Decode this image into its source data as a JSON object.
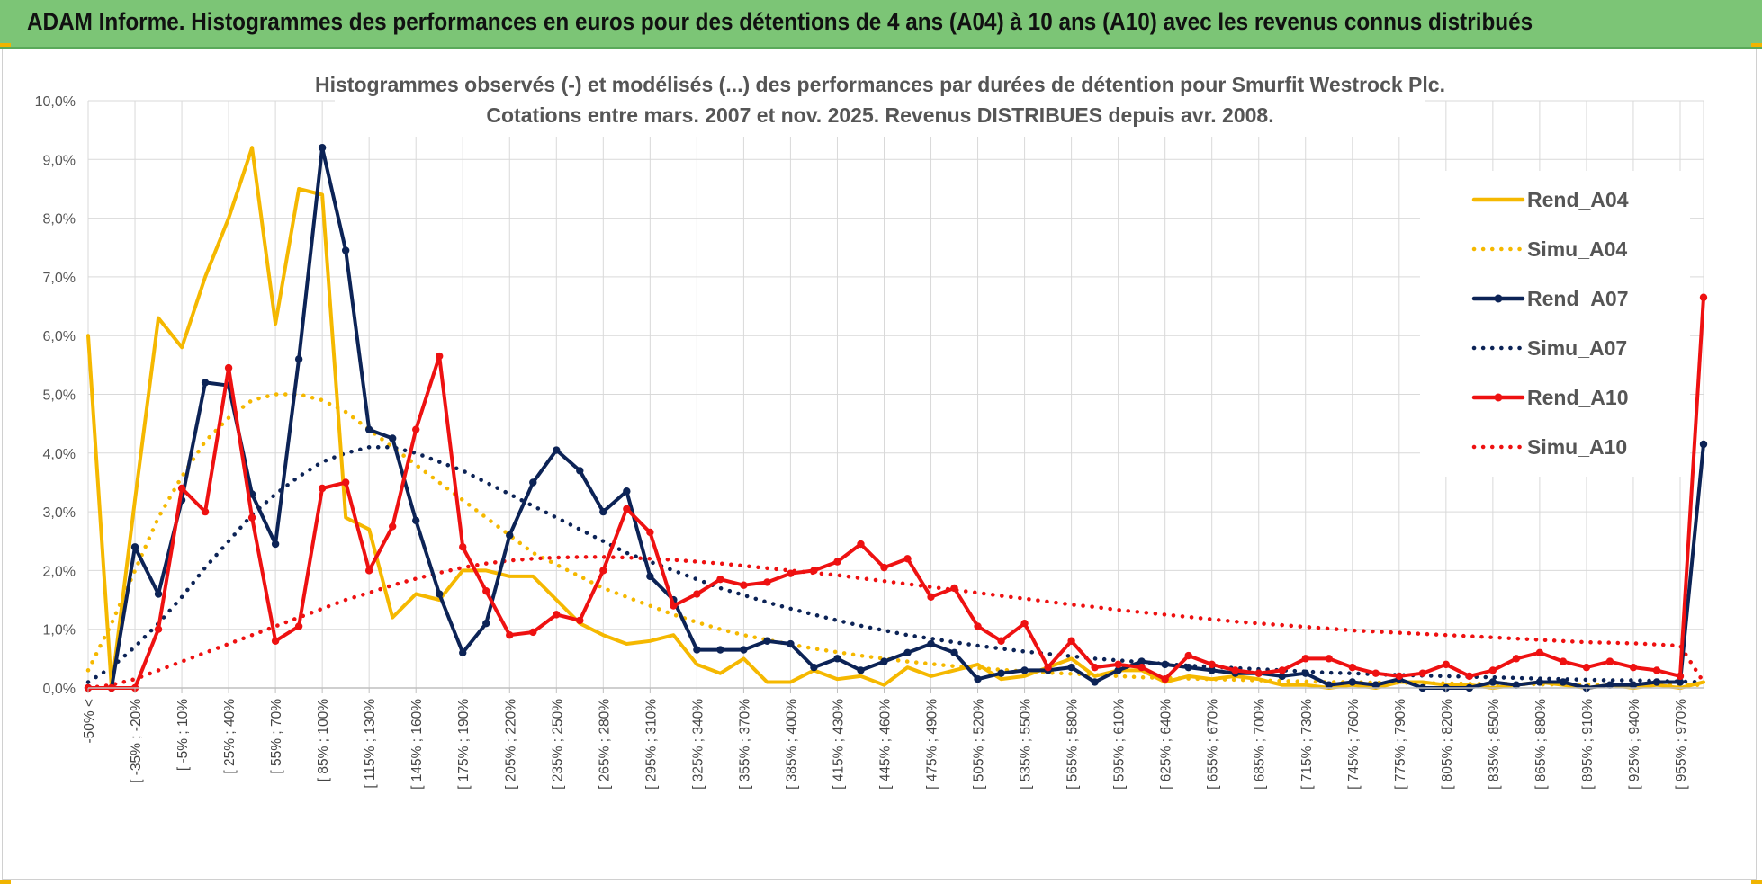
{
  "banner": {
    "title": "ADAM Informe. Histogrammes des performances en euros pour des détentions de 4 ans (A04) à 10 ans (A10) avec les revenus connus distribués"
  },
  "colors": {
    "banner_bg": "#7cc576",
    "A04": "#f5b800",
    "A07": "#0c2356",
    "A10": "#ee1111",
    "grid": "#d9d9d9"
  },
  "chart_data": {
    "type": "line",
    "title": [
      "Histogrammes observés (-) et modélisés (...) des performances par durées de détention pour Smurfit  Westrock Plc.",
      "Cotations entre mars. 2007 et nov. 2025.  Revenus DISTRIBUES depuis avr. 2008."
    ],
    "xlabel": "",
    "ylabel": "",
    "ylim": [
      0,
      10
    ],
    "y_ticks": [
      "0,0%",
      "1,0%",
      "2,0%",
      "3,0%",
      "4,0%",
      "5,0%",
      "6,0%",
      "7,0%",
      "8,0%",
      "9,0%",
      "10,0%"
    ],
    "x_tick_labels": [
      "-50% <",
      "[ -35% ; -20%",
      "[ -5% ; 10%",
      "[ 25% ; 40%",
      "[ 55% ; 70%",
      "[ 85% ; 100%",
      "[ 115% ; 130%",
      "[ 145% ; 160%",
      "[ 175% ; 190%",
      "[ 205% ; 220%",
      "[ 235% ; 250%",
      "[ 265% ; 280%",
      "[ 295% ; 310%",
      "[ 325% ; 340%",
      "[ 355% ; 370%",
      "[ 385% ; 400%",
      "[ 415% ; 430%",
      "[ 445% ; 460%",
      "[ 475% ; 490%",
      "[ 505% ; 520%",
      "[ 535% ; 550%",
      "[ 565% ; 580%",
      "[ 595% ; 610%",
      "[ 625% ; 640%",
      "[ 655% ; 670%",
      "[ 685% ; 700%",
      "[ 715% ; 730%",
      "[ 745% ; 760%",
      "[ 775% ; 790%",
      "[ 805% ; 820%",
      "[ 835% ; 850%",
      "[ 865% ; 880%",
      "[ 895% ; 910%",
      "[ 925% ; 940%",
      "[ 955% ; 970%"
    ],
    "n_categories": 70,
    "legend": [
      "Rend_A04",
      "Simu_A04",
      "Rend_A07",
      "Simu_A07",
      "Rend_A10",
      "Simu_A10"
    ],
    "legend_position": "right",
    "series": [
      {
        "name": "Rend_A04",
        "style": "solid",
        "marker": false,
        "color": "#f5b800",
        "values": [
          6.0,
          0.0,
          3.2,
          6.3,
          5.8,
          7.0,
          8.0,
          9.2,
          6.2,
          8.5,
          8.4,
          2.9,
          2.7,
          1.2,
          1.6,
          1.5,
          2.0,
          2.0,
          1.9,
          1.9,
          1.5,
          1.1,
          0.9,
          0.75,
          0.8,
          0.9,
          0.4,
          0.25,
          0.5,
          0.1,
          0.1,
          0.3,
          0.15,
          0.2,
          0.05,
          0.35,
          0.2,
          0.3,
          0.4,
          0.15,
          0.2,
          0.35,
          0.5,
          0.2,
          0.3,
          0.3,
          0.1,
          0.2,
          0.15,
          0.2,
          0.15,
          0.05,
          0.05,
          0.0,
          0.05,
          0.0,
          0.1,
          0.1,
          0.05,
          0.05,
          0.0,
          0.05,
          0.1,
          0.05,
          0.0,
          0.05,
          0.0,
          0.05,
          0.0,
          0.1
        ]
      },
      {
        "name": "Simu_A04",
        "style": "dotted",
        "marker": false,
        "color": "#f5b800",
        "values": [
          0.3,
          1.1,
          2.0,
          2.9,
          3.6,
          4.2,
          4.6,
          4.9,
          5.0,
          5.0,
          4.9,
          4.7,
          4.4,
          4.1,
          3.8,
          3.5,
          3.2,
          2.9,
          2.6,
          2.3,
          2.1,
          1.9,
          1.7,
          1.55,
          1.4,
          1.25,
          1.12,
          1.0,
          0.9,
          0.82,
          0.74,
          0.67,
          0.61,
          0.55,
          0.5,
          0.45,
          0.41,
          0.37,
          0.34,
          0.31,
          0.28,
          0.26,
          0.24,
          0.22,
          0.2,
          0.18,
          0.17,
          0.16,
          0.15,
          0.14,
          0.13,
          0.12,
          0.11,
          0.1,
          0.1,
          0.09,
          0.09,
          0.08,
          0.08,
          0.07,
          0.07,
          0.07,
          0.06,
          0.06,
          0.06,
          0.05,
          0.05,
          0.05,
          0.05,
          0.05
        ]
      },
      {
        "name": "Rend_A07",
        "style": "solid",
        "marker": true,
        "color": "#0c2356",
        "values": [
          0.0,
          0.0,
          2.4,
          1.6,
          3.2,
          5.2,
          5.15,
          3.3,
          2.45,
          5.6,
          9.2,
          7.45,
          4.4,
          4.25,
          2.85,
          1.6,
          0.6,
          1.1,
          2.6,
          3.5,
          4.05,
          3.7,
          3.0,
          3.35,
          1.9,
          1.5,
          0.65,
          0.65,
          0.65,
          0.8,
          0.75,
          0.35,
          0.5,
          0.3,
          0.45,
          0.6,
          0.75,
          0.6,
          0.15,
          0.25,
          0.3,
          0.3,
          0.35,
          0.1,
          0.3,
          0.45,
          0.4,
          0.35,
          0.3,
          0.25,
          0.25,
          0.2,
          0.25,
          0.05,
          0.1,
          0.05,
          0.15,
          0.0,
          0.0,
          0.0,
          0.1,
          0.05,
          0.1,
          0.1,
          0.0,
          0.05,
          0.05,
          0.1,
          0.1,
          4.15
        ]
      },
      {
        "name": "Simu_A07",
        "style": "dotted",
        "marker": false,
        "color": "#0c2356",
        "values": [
          0.1,
          0.35,
          0.7,
          1.1,
          1.55,
          2.05,
          2.5,
          2.95,
          3.3,
          3.6,
          3.85,
          4.0,
          4.1,
          4.1,
          4.0,
          3.85,
          3.7,
          3.5,
          3.3,
          3.1,
          2.9,
          2.7,
          2.5,
          2.3,
          2.15,
          2.0,
          1.85,
          1.7,
          1.58,
          1.46,
          1.35,
          1.25,
          1.15,
          1.06,
          0.98,
          0.9,
          0.84,
          0.78,
          0.72,
          0.67,
          0.62,
          0.58,
          0.54,
          0.5,
          0.47,
          0.44,
          0.41,
          0.38,
          0.36,
          0.34,
          0.32,
          0.3,
          0.28,
          0.26,
          0.25,
          0.23,
          0.22,
          0.21,
          0.2,
          0.19,
          0.18,
          0.17,
          0.16,
          0.15,
          0.14,
          0.13,
          0.13,
          0.12,
          0.11,
          0.1
        ]
      },
      {
        "name": "Rend_A10",
        "style": "solid",
        "marker": true,
        "color": "#ee1111",
        "values": [
          0.0,
          0.0,
          0.0,
          1.0,
          3.4,
          3.0,
          5.45,
          2.9,
          0.8,
          1.05,
          3.4,
          3.5,
          2.0,
          2.75,
          4.4,
          5.65,
          2.4,
          1.65,
          0.9,
          0.95,
          1.25,
          1.15,
          2.0,
          3.05,
          2.65,
          1.4,
          1.6,
          1.85,
          1.75,
          1.8,
          1.95,
          2.0,
          2.15,
          2.45,
          2.05,
          2.2,
          1.55,
          1.7,
          1.05,
          0.8,
          1.1,
          0.35,
          0.8,
          0.35,
          0.4,
          0.35,
          0.15,
          0.55,
          0.4,
          0.3,
          0.25,
          0.3,
          0.5,
          0.5,
          0.35,
          0.25,
          0.2,
          0.25,
          0.4,
          0.2,
          0.3,
          0.5,
          0.6,
          0.45,
          0.35,
          0.45,
          0.35,
          0.3,
          0.2,
          6.65
        ]
      },
      {
        "name": "Simu_A10",
        "style": "dotted",
        "marker": false,
        "color": "#ee1111",
        "values": [
          0.0,
          0.05,
          0.15,
          0.3,
          0.45,
          0.6,
          0.75,
          0.9,
          1.05,
          1.2,
          1.35,
          1.5,
          1.62,
          1.75,
          1.86,
          1.96,
          2.05,
          2.12,
          2.17,
          2.2,
          2.22,
          2.23,
          2.23,
          2.22,
          2.2,
          2.18,
          2.15,
          2.12,
          2.08,
          2.04,
          2.0,
          1.96,
          1.92,
          1.87,
          1.82,
          1.77,
          1.72,
          1.67,
          1.62,
          1.57,
          1.52,
          1.47,
          1.42,
          1.38,
          1.33,
          1.29,
          1.25,
          1.21,
          1.17,
          1.13,
          1.1,
          1.07,
          1.04,
          1.01,
          0.98,
          0.96,
          0.94,
          0.92,
          0.9,
          0.88,
          0.86,
          0.84,
          0.82,
          0.8,
          0.78,
          0.77,
          0.76,
          0.74,
          0.72,
          0.1
        ]
      }
    ]
  }
}
